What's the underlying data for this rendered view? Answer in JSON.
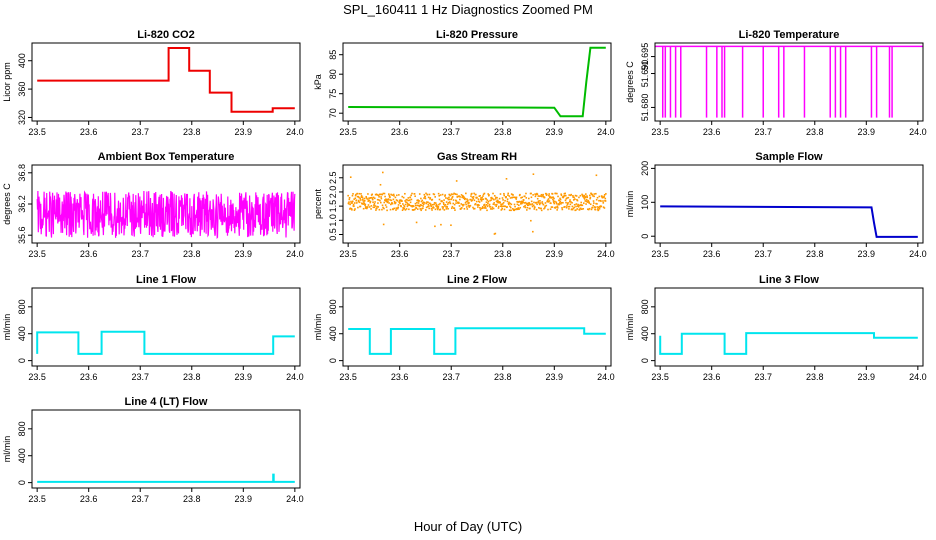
{
  "figure": {
    "title": "SPL_160411  1 Hz Diagnostics Zoomed PM",
    "xlabel": "Hour of Day (UTC)"
  },
  "chart_data": [
    {
      "type": "line",
      "title": "Li-820 CO2",
      "ylabel": "Licor ppm",
      "color": "#ee0000",
      "xlim": [
        23.49,
        24.01
      ],
      "ylim": [
        315,
        425
      ],
      "xticks": [
        "23.5",
        "23.6",
        "23.7",
        "23.8",
        "23.9",
        "24.0"
      ],
      "yticks": [
        320,
        360,
        400
      ],
      "series": [
        {
          "x": [
            23.5,
            23.755,
            23.755,
            23.795,
            23.795,
            23.835,
            23.835,
            23.877,
            23.877,
            23.957,
            23.957,
            24.0
          ],
          "y": [
            372,
            372,
            418,
            418,
            386,
            386,
            355,
            355,
            328,
            328,
            333,
            333
          ]
        }
      ]
    },
    {
      "type": "line",
      "title": "Li-820 Pressure",
      "ylabel": "kPa",
      "color": "#00bb00",
      "xlim": [
        23.49,
        24.01
      ],
      "ylim": [
        68,
        88
      ],
      "xticks": [
        "23.5",
        "23.6",
        "23.7",
        "23.8",
        "23.9",
        "24.0"
      ],
      "yticks": [
        70,
        75,
        80,
        85
      ],
      "series": [
        {
          "x": [
            23.5,
            23.9,
            23.912,
            23.955,
            23.962,
            23.97,
            24.0
          ],
          "y": [
            71.6,
            71.4,
            69.2,
            69.2,
            78,
            86.8,
            86.8
          ]
        }
      ]
    },
    {
      "type": "line",
      "title": "Li-820 Temperature",
      "ylabel": "degrees C",
      "color": "#ff00ff",
      "xlim": [
        23.49,
        24.01
      ],
      "ylim": [
        51.676,
        51.699
      ],
      "xticks": [
        "23.5",
        "23.6",
        "23.7",
        "23.8",
        "23.9",
        "24.0"
      ],
      "yticks": [
        "51.680",
        "51.690",
        "51.695"
      ],
      "series": [
        {
          "base": 51.698,
          "low": 51.677,
          "dips": [
            23.505,
            23.51,
            23.52,
            23.53,
            23.54,
            23.59,
            23.61,
            23.62,
            23.625,
            23.66,
            23.7,
            23.73,
            23.74,
            23.78,
            23.83,
            23.84,
            23.85,
            23.86,
            23.91,
            23.92,
            23.945,
            23.95
          ]
        }
      ]
    },
    {
      "type": "line",
      "title": "Ambient Box Temperature",
      "ylabel": "degrees C",
      "color": "#ff00ff",
      "xlim": [
        23.49,
        24.01
      ],
      "ylim": [
        35.45,
        36.95
      ],
      "xticks": [
        "23.5",
        "23.6",
        "23.7",
        "23.8",
        "23.9",
        "24.0"
      ],
      "yticks": [
        "35.6",
        "36.2",
        "36.8"
      ],
      "series": [
        {
          "center": 36.0,
          "amplitude": 0.45,
          "x_start": 23.5,
          "x_end": 24.0
        }
      ]
    },
    {
      "type": "scatter",
      "title": "Gas Stream RH",
      "ylabel": "percent",
      "color": "#ff9900",
      "xlim": [
        23.49,
        24.01
      ],
      "ylim": [
        0.2,
        2.95
      ],
      "xticks": [
        "23.5",
        "23.6",
        "23.7",
        "23.8",
        "23.9",
        "24.0"
      ],
      "yticks": [
        "0.5",
        "1.0",
        "1.5",
        "2.0",
        "2.5"
      ],
      "series": [
        {
          "center": 1.65,
          "amplitude": 0.3,
          "x_start": 23.5,
          "x_end": 24.0
        }
      ]
    },
    {
      "type": "line",
      "title": "Sample Flow",
      "ylabel": "ml/min",
      "color": "#0000cc",
      "xlim": [
        23.49,
        24.01
      ],
      "ylim": [
        -20,
        210
      ],
      "xticks": [
        "23.5",
        "23.6",
        "23.7",
        "23.8",
        "23.9",
        "24.0"
      ],
      "yticks": [
        0,
        100,
        200
      ],
      "series": [
        {
          "x": [
            23.5,
            23.91,
            23.915,
            23.92,
            24.0
          ],
          "y": [
            88,
            85,
            40,
            -2,
            -2
          ]
        }
      ]
    },
    {
      "type": "line",
      "title": "Line 1 Flow",
      "ylabel": "ml/min",
      "color": "#00e5ee",
      "xlim": [
        23.49,
        24.01
      ],
      "ylim": [
        -80,
        1080
      ],
      "xticks": [
        "23.5",
        "23.6",
        "23.7",
        "23.8",
        "23.9",
        "24.0"
      ],
      "yticks": [
        0,
        400,
        800
      ],
      "series": [
        {
          "x": [
            23.5,
            23.5,
            23.58,
            23.58,
            23.625,
            23.625,
            23.708,
            23.708,
            23.958,
            23.958,
            24.0
          ],
          "y": [
            100,
            420,
            420,
            100,
            100,
            430,
            430,
            100,
            100,
            360,
            360
          ]
        }
      ]
    },
    {
      "type": "line",
      "title": "Line 2 Flow",
      "ylabel": "ml/min",
      "color": "#00e5ee",
      "xlim": [
        23.49,
        24.01
      ],
      "ylim": [
        -80,
        1080
      ],
      "xticks": [
        "23.5",
        "23.6",
        "23.7",
        "23.8",
        "23.9",
        "24.0"
      ],
      "yticks": [
        0,
        400,
        800
      ],
      "series": [
        {
          "x": [
            23.5,
            23.542,
            23.542,
            23.583,
            23.583,
            23.667,
            23.667,
            23.708,
            23.708,
            23.958,
            23.958,
            24.0
          ],
          "y": [
            470,
            470,
            100,
            100,
            470,
            470,
            100,
            100,
            480,
            480,
            400,
            400
          ]
        }
      ]
    },
    {
      "type": "line",
      "title": "Line 3 Flow",
      "ylabel": "ml/min",
      "color": "#00e5ee",
      "xlim": [
        23.49,
        24.01
      ],
      "ylim": [
        -80,
        1080
      ],
      "xticks": [
        "23.5",
        "23.6",
        "23.7",
        "23.8",
        "23.9",
        "24.0"
      ],
      "yticks": [
        0,
        400,
        800
      ],
      "series": [
        {
          "x": [
            23.5,
            23.5,
            23.542,
            23.542,
            23.625,
            23.625,
            23.667,
            23.667,
            23.915,
            23.915,
            24.0
          ],
          "y": [
            370,
            100,
            100,
            400,
            400,
            100,
            100,
            410,
            410,
            340,
            340
          ]
        }
      ]
    },
    {
      "type": "line",
      "title": "Line 4 (LT) Flow",
      "ylabel": "ml/min",
      "color": "#00e5ee",
      "xlim": [
        23.49,
        24.01
      ],
      "ylim": [
        -80,
        1080
      ],
      "xticks": [
        "23.5",
        "23.6",
        "23.7",
        "23.8",
        "23.9",
        "24.0"
      ],
      "yticks": [
        0,
        400,
        800
      ],
      "series": [
        {
          "x": [
            23.5,
            23.958,
            23.958,
            23.959,
            23.959,
            24.0
          ],
          "y": [
            10,
            10,
            120,
            120,
            10,
            10
          ]
        }
      ]
    }
  ]
}
